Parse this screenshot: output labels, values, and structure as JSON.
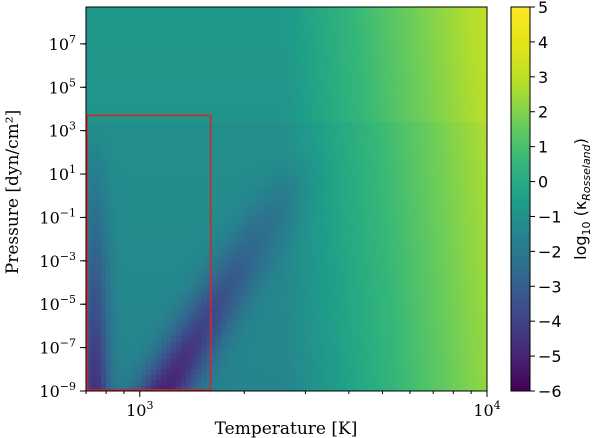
{
  "chart_data": {
    "type": "heatmap",
    "xlabel": "Temperature [K]",
    "ylabel": "Pressure  [dyn/cm²]",
    "colorbar_label": "log10 (κRosseland)",
    "x_scale": "log",
    "y_scale": "log",
    "xlim": [
      700,
      10000
    ],
    "ylim": [
      1e-09,
      500000000
    ],
    "x_ticks": [
      {
        "value": 1000,
        "base": "10",
        "exp": "3"
      },
      {
        "value": 10000,
        "base": "10",
        "exp": "4"
      }
    ],
    "y_ticks": [
      {
        "value": 1e-09,
        "base": "10",
        "exp": "−9"
      },
      {
        "value": 1e-07,
        "base": "10",
        "exp": "−7"
      },
      {
        "value": 1e-05,
        "base": "10",
        "exp": "−5"
      },
      {
        "value": 0.001,
        "base": "10",
        "exp": "−3"
      },
      {
        "value": 0.1,
        "base": "10",
        "exp": "−1"
      },
      {
        "value": 10,
        "base": "10",
        "exp": "1"
      },
      {
        "value": 1000,
        "base": "10",
        "exp": "3"
      },
      {
        "value": 100000,
        "base": "10",
        "exp": "5"
      },
      {
        "value": 10000000,
        "base": "10",
        "exp": "7"
      }
    ],
    "colorbar": {
      "colormap": "viridis",
      "range": [
        -6,
        5
      ],
      "tick_labels": [
        "−6",
        "−5",
        "−4",
        "−3",
        "−2",
        "−1",
        "0",
        "1",
        "2",
        "3",
        "4",
        "5"
      ]
    },
    "highlight_box": {
      "color": "#d62728",
      "x_range": [
        700,
        1600
      ],
      "y_range": [
        1e-09,
        5000
      ]
    }
  }
}
